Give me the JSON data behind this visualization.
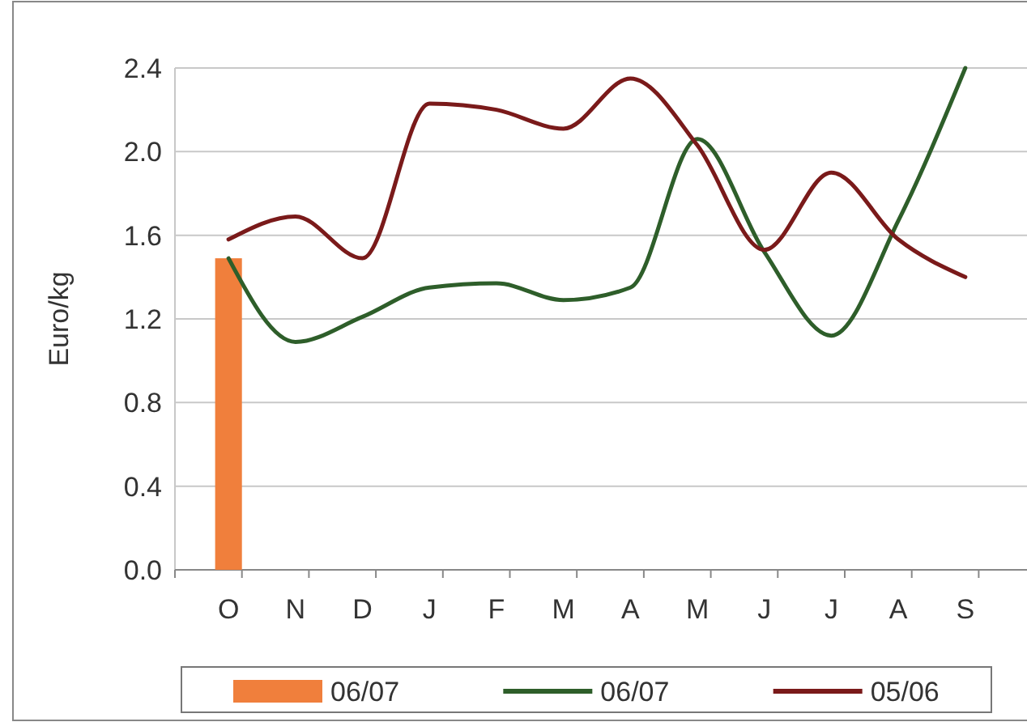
{
  "chart_data": {
    "type": "line",
    "ylabel": "Euro/kg",
    "categories": [
      "O",
      "N",
      "D",
      "J",
      "F",
      "M",
      "A",
      "M",
      "J",
      "J",
      "A",
      "S"
    ],
    "series": [
      {
        "name": "06/07",
        "type": "bar",
        "color": "#f07f3c",
        "values": [
          1.49,
          null,
          null,
          null,
          null,
          null,
          null,
          null,
          null,
          null,
          null,
          null
        ]
      },
      {
        "name": "06/07",
        "color": "#2e5e2a",
        "values": [
          1.49,
          1.09,
          1.21,
          1.35,
          1.37,
          1.29,
          1.35,
          2.06,
          1.52,
          1.12,
          1.67,
          2.4
        ]
      },
      {
        "name": "05/06",
        "color": "#7a1a1a",
        "values": [
          1.58,
          1.69,
          1.49,
          2.23,
          2.2,
          2.11,
          2.35,
          2.03,
          1.53,
          1.9,
          1.58,
          1.4
        ]
      }
    ],
    "ylim": [
      0,
      2.4
    ],
    "yticks": [
      {
        "value": 0,
        "label": "0.0"
      },
      {
        "value": 0.4,
        "label": "0.4"
      },
      {
        "value": 0.8,
        "label": "0.8"
      },
      {
        "value": 1.2,
        "label": "1.2"
      },
      {
        "value": 1.6,
        "label": "1.6"
      },
      {
        "value": 2,
        "label": "2.0"
      },
      {
        "value": 2.4,
        "label": "2.4"
      }
    ],
    "grid": "y",
    "legend": "bottom"
  }
}
